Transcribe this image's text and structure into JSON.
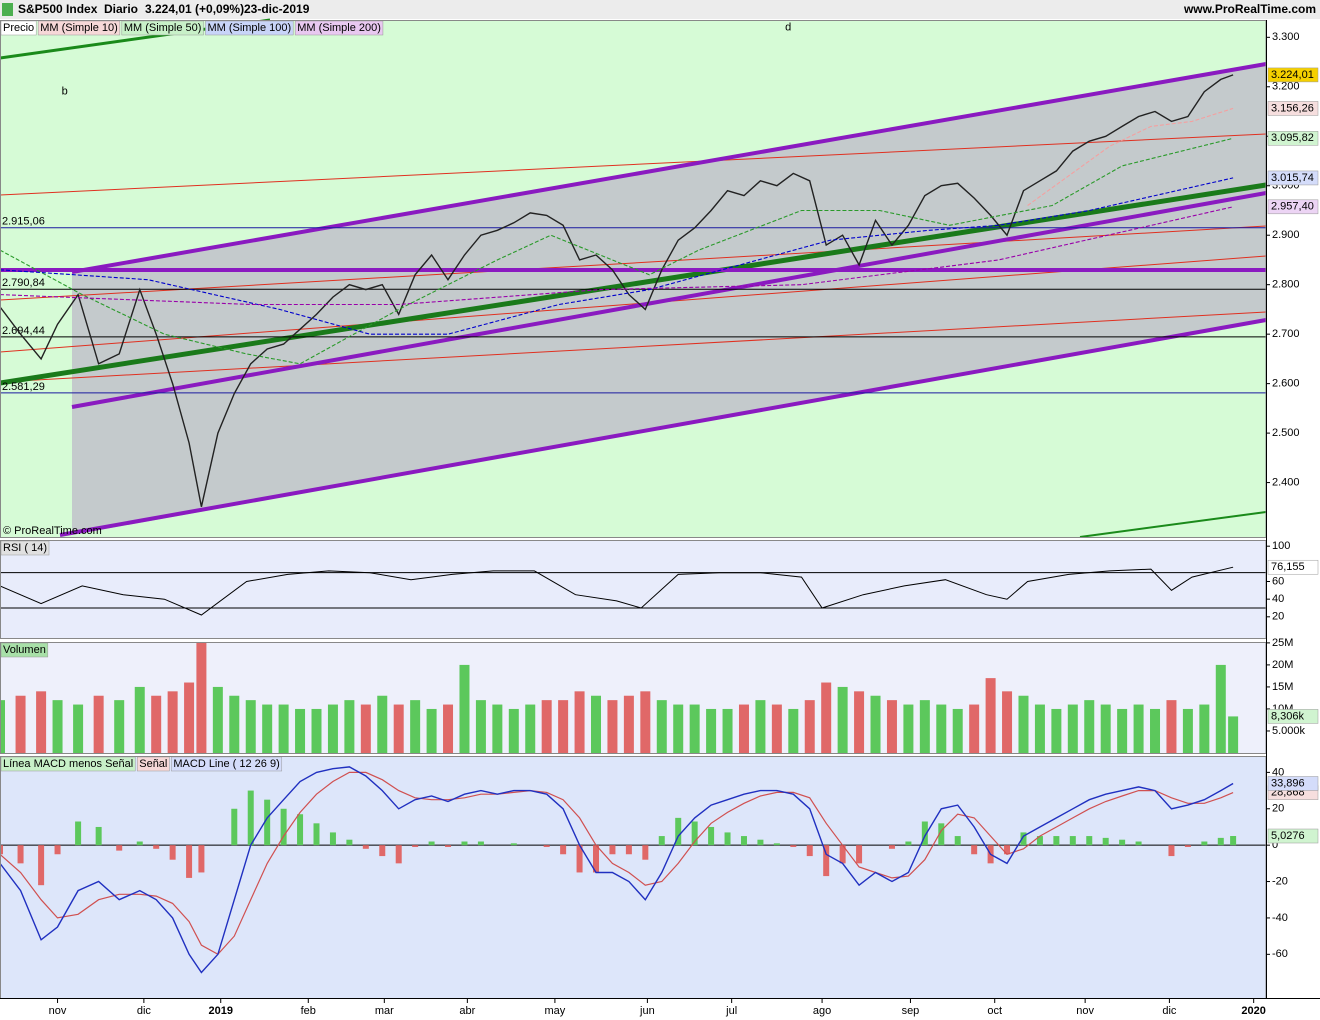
{
  "chart_data": [
    {
      "type": "line",
      "title": "S&P500 Index",
      "subtitle": "Diario",
      "quote": "3.224,01 (+0,09%)",
      "date": "23-dic-2019",
      "source": "www.ProRealTime.com",
      "copyright": "© ProRealTime.com",
      "ylim": [
        2290,
        3335
      ],
      "yticks": [
        {
          "value": 2400,
          "label": "2.400"
        },
        {
          "value": 2500,
          "label": "2.500"
        },
        {
          "value": 2600,
          "label": "2.600"
        },
        {
          "value": 2700,
          "label": "2.700"
        },
        {
          "value": 2800,
          "label": "2.800"
        },
        {
          "value": 2900,
          "label": "2.900"
        },
        {
          "value": 3000,
          "label": "3.000"
        },
        {
          "value": 3100,
          "label": "3.100"
        },
        {
          "value": 3200,
          "label": "3.200"
        },
        {
          "value": 3300,
          "label": "3.300"
        }
      ],
      "series": [
        {
          "name": "Precio",
          "color": "#222222",
          "legend_bg": "#ffffff",
          "x": [
            0,
            5,
            10,
            14,
            19,
            24,
            29,
            34,
            38,
            42,
            46,
            49,
            53,
            57,
            61,
            65,
            69,
            73,
            77,
            81,
            85,
            89,
            93,
            97,
            101,
            105,
            109,
            113,
            117,
            121,
            125,
            129,
            133,
            137,
            141,
            145,
            149,
            153,
            157,
            161,
            165,
            169,
            173,
            177,
            181,
            185,
            189,
            193,
            197,
            201,
            205,
            209,
            213,
            217,
            221,
            225,
            229,
            233,
            237,
            241,
            245,
            249,
            253,
            257,
            261,
            265,
            269,
            273,
            277,
            281,
            285,
            289,
            293,
            297,
            300
          ],
          "values": [
            2755,
            2700,
            2650,
            2720,
            2780,
            2640,
            2660,
            2790,
            2700,
            2600,
            2480,
            2351,
            2500,
            2580,
            2640,
            2670,
            2680,
            2710,
            2740,
            2775,
            2800,
            2790,
            2800,
            2740,
            2820,
            2860,
            2810,
            2860,
            2900,
            2910,
            2925,
            2945,
            2940,
            2920,
            2850,
            2860,
            2830,
            2780,
            2750,
            2830,
            2890,
            2915,
            2950,
            2990,
            2980,
            3010,
            3000,
            3025,
            3010,
            2880,
            2900,
            2840,
            2930,
            2880,
            2920,
            2980,
            3000,
            3005,
            2975,
            2940,
            2900,
            2990,
            3010,
            3030,
            3070,
            3090,
            3100,
            3120,
            3140,
            3150,
            3130,
            3140,
            3190,
            3215,
            3224.01
          ]
        },
        {
          "name": "MM (Simple 10)",
          "color": "#f4a0a0",
          "legend_bg": "#f6d8d8",
          "x": [
            250,
            260,
            270,
            280,
            290,
            300
          ],
          "values": [
            2960,
            3020,
            3080,
            3120,
            3130,
            3156.26
          ]
        },
        {
          "name": "MM (Simple 50)",
          "color": "#2a9a2a",
          "legend_bg": "#c8f0c8",
          "x": [
            0,
            20,
            40,
            60,
            73,
            97,
            121,
            134,
            158,
            170,
            195,
            214,
            231,
            256,
            273,
            300
          ],
          "values": [
            2870,
            2780,
            2700,
            2660,
            2640,
            2750,
            2850,
            2900,
            2820,
            2870,
            2950,
            2950,
            2920,
            2960,
            3040,
            3095.82
          ]
        },
        {
          "name": "MM (Simple 100)",
          "color": "#0000cc",
          "legend_bg": "#c8d4f8",
          "x": [
            0,
            36,
            68,
            90,
            109,
            136,
            158,
            180,
            202,
            226,
            243,
            265,
            300
          ],
          "values": [
            2830,
            2810,
            2750,
            2700,
            2700,
            2760,
            2790,
            2840,
            2890,
            2910,
            2920,
            2950,
            3015.74
          ]
        },
        {
          "name": "MM (Simple 200)",
          "color": "#9900aa",
          "legend_bg": "#e8c8f0",
          "x": [
            0,
            61,
            97,
            146,
            195,
            243,
            300
          ],
          "values": [
            2780,
            2760,
            2760,
            2790,
            2800,
            2850,
            2957.4
          ]
        }
      ],
      "hlines": [
        {
          "value": 2915.06,
          "label": "2.915,06",
          "color": "#1a1aa0"
        },
        {
          "value": 2790.84,
          "label": "2.790,84",
          "color": "#000000"
        },
        {
          "value": 2694.44,
          "label": "2.694,44",
          "color": "#000000"
        },
        {
          "value": 2581.29,
          "label": "2.581,29",
          "color": "#1a1aa0"
        }
      ],
      "annotations": [
        {
          "text": "b",
          "x": 15,
          "y": 3190
        },
        {
          "text": "d",
          "x": 191,
          "y": 3320
        }
      ],
      "last_labels": [
        {
          "value": 3224.01,
          "label": "3.224,01",
          "color": "#f5d000",
          "text_color": "#000000"
        },
        {
          "value": 3156.26,
          "label": "3.156,26",
          "color": "#f6dede",
          "text_color": "#d06060"
        },
        {
          "value": 3095.82,
          "label": "3.095,82",
          "color": "#d0f4d0",
          "text_color": "#207020"
        },
        {
          "value": 3015.74,
          "label": "3.015,74",
          "color": "#d4dcfa",
          "text_color": "#101080"
        },
        {
          "value": 2957.4,
          "label": "2.957,40",
          "color": "#ecd4f4",
          "text_color": "#800090"
        }
      ]
    },
    {
      "type": "line",
      "title": "RSI ( 14)",
      "color": "#000000",
      "ylim": [
        -4,
        107
      ],
      "yticks": [
        20,
        40,
        60,
        100
      ],
      "levels": [
        70,
        30
      ],
      "x": [
        0,
        10,
        20,
        30,
        40,
        49,
        60,
        70,
        80,
        90,
        100,
        110,
        120,
        130,
        140,
        150,
        156,
        165,
        175,
        185,
        195,
        200,
        210,
        220,
        230,
        240,
        245,
        250,
        260,
        270,
        280,
        285,
        290,
        300
      ],
      "values": [
        55,
        35,
        55,
        45,
        40,
        22,
        60,
        68,
        72,
        70,
        62,
        68,
        72,
        72,
        45,
        38,
        30,
        68,
        70,
        70,
        65,
        30,
        45,
        55,
        62,
        45,
        40,
        60,
        68,
        72,
        74,
        50,
        65,
        76.155
      ],
      "last_label": {
        "value": 76.155,
        "label": "76,155"
      }
    },
    {
      "type": "bar",
      "title": "Volumen",
      "up_color": "#5cc85c",
      "down_color": "#e06868",
      "ylim": [
        0,
        25.2
      ],
      "yticks": [
        {
          "value": 5,
          "label": "5.000k"
        },
        {
          "value": 10,
          "label": "10M"
        },
        {
          "value": 15,
          "label": "15M"
        },
        {
          "value": 20,
          "label": "20M"
        },
        {
          "value": 25,
          "label": "25M"
        }
      ],
      "x": [
        0,
        5,
        10,
        14,
        19,
        24,
        29,
        34,
        38,
        42,
        46,
        49,
        53,
        57,
        61,
        65,
        69,
        73,
        77,
        81,
        85,
        89,
        93,
        97,
        101,
        105,
        109,
        113,
        117,
        121,
        125,
        129,
        133,
        137,
        141,
        145,
        149,
        153,
        157,
        161,
        165,
        169,
        173,
        177,
        181,
        185,
        189,
        193,
        197,
        201,
        205,
        209,
        213,
        217,
        221,
        225,
        229,
        233,
        237,
        241,
        245,
        249,
        253,
        257,
        261,
        265,
        269,
        273,
        277,
        281,
        285,
        289,
        293,
        297,
        300
      ],
      "values": [
        12,
        13,
        14,
        12,
        11,
        13,
        12,
        15,
        13,
        14,
        16,
        25,
        15,
        13,
        12,
        11,
        11,
        10,
        10,
        11,
        12,
        11,
        13,
        11,
        12,
        10,
        11,
        20,
        12,
        11,
        10,
        11,
        12,
        12,
        14,
        13,
        12,
        13,
        14,
        12,
        11,
        11,
        10,
        10,
        11,
        12,
        11,
        10,
        12,
        16,
        15,
        14,
        13,
        12,
        11,
        12,
        11,
        10,
        11,
        17,
        14,
        13,
        11,
        10,
        11,
        12,
        11,
        10,
        11,
        10,
        12,
        10,
        11,
        20,
        8.306
      ],
      "last_label": {
        "value": 8.306,
        "label": "8,306k"
      }
    },
    {
      "type": "macd",
      "ylim": [
        -84,
        49
      ],
      "yticks": [
        -60,
        -40,
        -20,
        0,
        20,
        40
      ],
      "xlim": [
        0,
        308
      ],
      "xticks": [
        {
          "value": 14,
          "label": "nov"
        },
        {
          "value": 35,
          "label": "dic"
        },
        {
          "value": 53.7,
          "label": "2019"
        },
        {
          "value": 75,
          "label": "feb"
        },
        {
          "value": 93.5,
          "label": "mar"
        },
        {
          "value": 113.7,
          "label": "abr"
        },
        {
          "value": 135,
          "label": "may"
        },
        {
          "value": 157.5,
          "label": "jun"
        },
        {
          "value": 178,
          "label": "jul"
        },
        {
          "value": 200,
          "label": "ago"
        },
        {
          "value": 221.5,
          "label": "sep"
        },
        {
          "value": 242,
          "label": "oct"
        },
        {
          "value": 264,
          "label": "nov"
        },
        {
          "value": 284.5,
          "label": "dic"
        },
        {
          "value": 305,
          "label": "2020"
        }
      ],
      "x": [
        0,
        5,
        10,
        14,
        19,
        24,
        29,
        34,
        38,
        42,
        46,
        49,
        53,
        57,
        61,
        65,
        69,
        73,
        77,
        81,
        85,
        89,
        93,
        97,
        101,
        105,
        109,
        113,
        117,
        121,
        125,
        129,
        133,
        137,
        141,
        145,
        149,
        153,
        157,
        161,
        165,
        169,
        173,
        177,
        181,
        185,
        189,
        193,
        197,
        201,
        205,
        209,
        213,
        217,
        221,
        225,
        229,
        233,
        237,
        241,
        245,
        249,
        253,
        257,
        261,
        265,
        269,
        273,
        277,
        281,
        285,
        289,
        293,
        297,
        300
      ],
      "series": [
        {
          "name": "Línea MACD menos Señal",
          "color": "#5cc85c",
          "down_color": "#e06868",
          "legend_bg": "#c8f0c8",
          "values": [
            -5,
            -10,
            -22,
            -5,
            13,
            10,
            -3,
            2,
            -2,
            -8,
            -18,
            -15,
            0,
            20,
            30,
            25,
            20,
            17,
            12,
            7,
            3,
            -2,
            -6,
            -10,
            -1,
            2,
            -1,
            2,
            2,
            0,
            1,
            0,
            -1,
            -5,
            -15,
            -15,
            -5,
            -5,
            -8,
            5,
            15,
            13,
            10,
            7,
            5,
            3,
            1,
            -1,
            -6,
            -17,
            -10,
            -10,
            0,
            -2,
            2,
            13,
            12,
            5,
            -5,
            -10,
            -5,
            7,
            5,
            5,
            5,
            5,
            4,
            3,
            2,
            0,
            -6,
            -1,
            2,
            4,
            5.0276
          ],
          "last_label": {
            "value": 5.0276,
            "label": "5,0276",
            "color": "#d0f4d0"
          }
        },
        {
          "name": "Señal",
          "color": "#d05050",
          "legend_bg": "#f6d8d8",
          "values": [
            -5,
            -15,
            -30,
            -40,
            -38,
            -30,
            -27,
            -27,
            -28,
            -32,
            -42,
            -55,
            -60,
            -50,
            -30,
            -10,
            5,
            18,
            28,
            35,
            40,
            40,
            36,
            30,
            26,
            25,
            25,
            26,
            28,
            28,
            29,
            30,
            29,
            25,
            15,
            0,
            -10,
            -15,
            -22,
            -20,
            -10,
            2,
            12,
            18,
            23,
            27,
            29,
            29,
            26,
            12,
            0,
            -12,
            -15,
            -18,
            -17,
            -8,
            8,
            17,
            15,
            5,
            -5,
            -2,
            5,
            10,
            15,
            20,
            24,
            27,
            30,
            30,
            26,
            23,
            23,
            26,
            28.868
          ],
          "last_label": {
            "value": 28.868,
            "label": "28,868",
            "color": "#f6dede"
          }
        },
        {
          "name": "MACD Line ( 12 26 9)",
          "color": "#2030c0",
          "legend_bg": "#d4dcfa",
          "values": [
            -10,
            -25,
            -52,
            -45,
            -25,
            -20,
            -30,
            -25,
            -30,
            -40,
            -60,
            -70,
            -60,
            -30,
            0,
            15,
            25,
            35,
            40,
            42,
            43,
            38,
            30,
            20,
            25,
            27,
            24,
            28,
            30,
            28,
            30,
            30,
            28,
            20,
            0,
            -15,
            -15,
            -20,
            -30,
            -15,
            5,
            15,
            22,
            25,
            28,
            30,
            30,
            28,
            20,
            -5,
            -10,
            -22,
            -15,
            -20,
            -15,
            5,
            20,
            22,
            10,
            -5,
            -10,
            5,
            10,
            15,
            20,
            25,
            28,
            30,
            32,
            30,
            20,
            22,
            25,
            30,
            33.896
          ],
          "last_label": {
            "value": 33.896,
            "label": "33,896",
            "color": "#d4dcfa"
          }
        }
      ]
    }
  ]
}
